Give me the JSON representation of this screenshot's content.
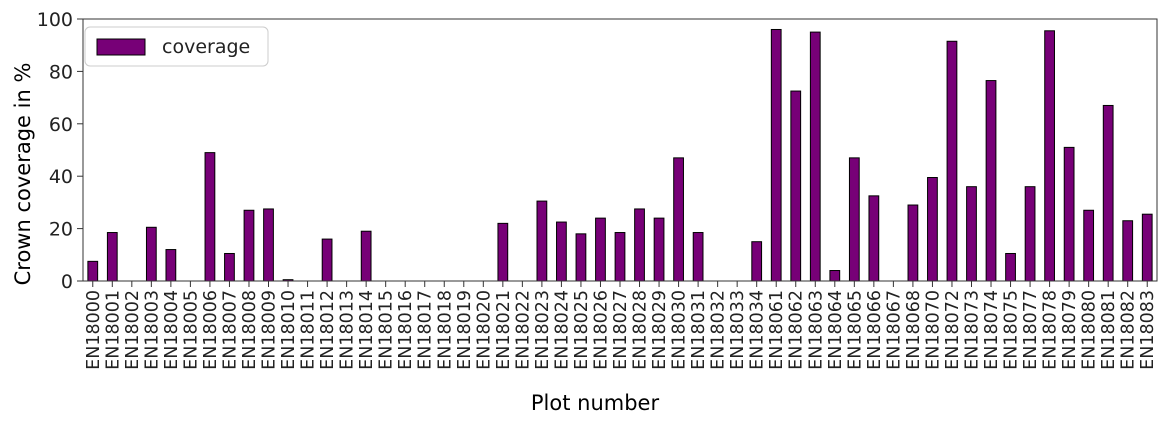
{
  "chart_data": {
    "type": "bar",
    "xlabel": "Plot number",
    "ylabel": "Crown coverage in %",
    "ylim": [
      0,
      100
    ],
    "yticks": [
      0,
      20,
      40,
      60,
      80,
      100
    ],
    "grid": false,
    "legend_position": "top-left",
    "bar_color": "#770077",
    "bar_edge_color": "#000000",
    "series": [
      {
        "name": "coverage",
        "values": [
          7.5,
          18.5,
          0,
          20.5,
          12,
          0,
          49,
          10.5,
          27,
          27.5,
          0.5,
          0,
          16,
          0,
          19,
          0,
          0,
          0,
          0,
          0,
          0,
          22,
          0,
          30.5,
          22.5,
          18,
          24,
          18.5,
          27.5,
          24,
          47,
          18.5,
          0,
          0,
          15,
          96,
          72.5,
          95,
          4,
          47,
          32.5,
          0,
          29,
          39.5,
          91.5,
          36,
          76.5,
          10.5,
          36,
          95.5,
          51,
          27,
          67,
          23,
          25.5
        ]
      }
    ],
    "categories": [
      "EN18000",
      "EN18001",
      "EN18002",
      "EN18003",
      "EN18004",
      "EN18005",
      "EN18006",
      "EN18007",
      "EN18008",
      "EN18009",
      "EN18010",
      "EN18011",
      "EN18012",
      "EN18013",
      "EN18014",
      "EN18015",
      "EN18016",
      "EN18017",
      "EN18018",
      "EN18019",
      "EN18020",
      "EN18021",
      "EN18022",
      "EN18023",
      "EN18024",
      "EN18025",
      "EN18026",
      "EN18027",
      "EN18028",
      "EN18029",
      "EN18030",
      "EN18031",
      "EN18032",
      "EN18033",
      "EN18034",
      "EN18061",
      "EN18062",
      "EN18063",
      "EN18064",
      "EN18065",
      "EN18066",
      "EN18067",
      "EN18068",
      "EN18070",
      "EN18072",
      "EN18073",
      "EN18074",
      "EN18075",
      "EN18077",
      "EN18078",
      "EN18079",
      "EN18080",
      "EN18081",
      "EN18082",
      "EN18083"
    ]
  }
}
